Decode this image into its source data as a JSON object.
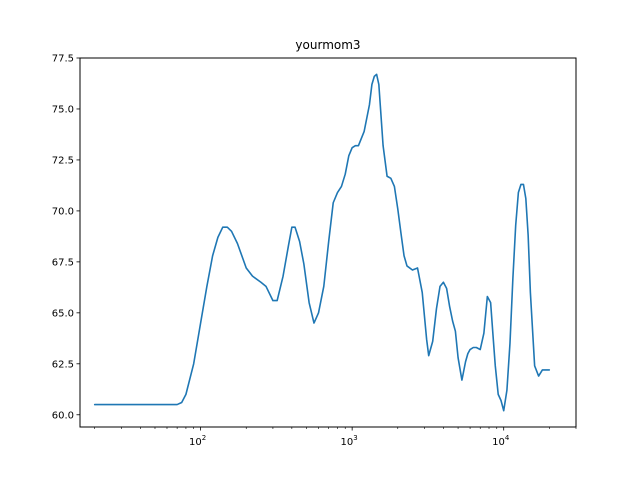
{
  "chart_data": {
    "type": "line",
    "title": "yourmom3",
    "xlabel": "",
    "ylabel": "",
    "xscale": "log",
    "xlim": [
      16,
      30000
    ],
    "ylim": [
      59.4,
      77.5
    ],
    "grid": false,
    "line_color": "#1f77b4",
    "y_ticks": [
      {
        "value": 60.0,
        "label": "60.0"
      },
      {
        "value": 62.5,
        "label": "62.5"
      },
      {
        "value": 65.0,
        "label": "65.0"
      },
      {
        "value": 67.5,
        "label": "67.5"
      },
      {
        "value": 70.0,
        "label": "70.0"
      },
      {
        "value": 72.5,
        "label": "72.5"
      },
      {
        "value": 75.0,
        "label": "75.0"
      },
      {
        "value": 77.5,
        "label": "77.5"
      }
    ],
    "x_ticks": [
      {
        "value": 100,
        "base": "10",
        "exp": "2"
      },
      {
        "value": 1000,
        "base": "10",
        "exp": "3"
      },
      {
        "value": 10000,
        "base": "10",
        "exp": "4"
      }
    ],
    "series": [
      {
        "x": [
          20,
          30,
          50,
          70,
          75,
          80,
          90,
          100,
          110,
          120,
          130,
          140,
          150,
          160,
          175,
          200,
          220,
          250,
          270,
          300,
          320,
          350,
          380,
          400,
          420,
          450,
          480,
          520,
          560,
          600,
          650,
          700,
          750,
          800,
          850,
          900,
          950,
          1000,
          1050,
          1100,
          1200,
          1300,
          1350,
          1400,
          1450,
          1500,
          1600,
          1700,
          1800,
          1900,
          2000,
          2100,
          2200,
          2300,
          2500,
          2700,
          2900,
          3100,
          3200,
          3400,
          3600,
          3800,
          4000,
          4200,
          4400,
          4600,
          4800,
          5000,
          5300,
          5600,
          5800,
          6000,
          6300,
          6600,
          7000,
          7400,
          7800,
          8200,
          8500,
          8800,
          9200,
          9600,
          10000,
          10500,
          11000,
          11500,
          12000,
          12500,
          13000,
          13500,
          14000,
          14500,
          15000,
          16000,
          17000,
          18000,
          20000
        ],
        "y": [
          60.5,
          60.5,
          60.5,
          60.5,
          60.6,
          61.0,
          62.5,
          64.5,
          66.3,
          67.8,
          68.7,
          69.2,
          69.2,
          69.0,
          68.4,
          67.2,
          66.8,
          66.5,
          66.3,
          65.6,
          65.6,
          66.8,
          68.3,
          69.2,
          69.2,
          68.5,
          67.4,
          65.5,
          64.5,
          65.0,
          66.3,
          68.5,
          70.4,
          70.9,
          71.2,
          71.8,
          72.7,
          73.1,
          73.2,
          73.2,
          73.9,
          75.2,
          76.2,
          76.6,
          76.7,
          76.2,
          73.2,
          71.7,
          71.6,
          71.2,
          70.1,
          68.9,
          67.8,
          67.3,
          67.1,
          67.2,
          66.0,
          63.7,
          62.9,
          63.6,
          65.2,
          66.3,
          66.5,
          66.2,
          65.3,
          64.6,
          64.1,
          62.8,
          61.7,
          62.6,
          63.0,
          63.2,
          63.3,
          63.3,
          63.2,
          64.0,
          65.8,
          65.5,
          63.9,
          62.4,
          61.0,
          60.7,
          60.2,
          61.2,
          63.5,
          66.7,
          69.3,
          70.9,
          71.3,
          71.3,
          70.6,
          68.8,
          66.0,
          62.4,
          61.9,
          62.2,
          62.2
        ]
      }
    ]
  }
}
